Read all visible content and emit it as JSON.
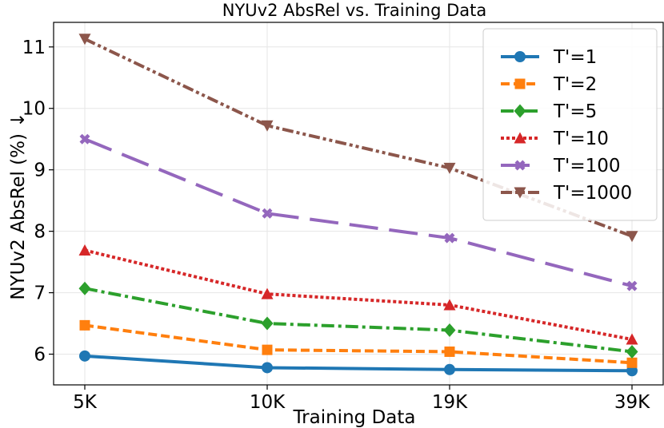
{
  "chart_data": {
    "type": "line",
    "title": "NYUv2 AbsRel vs. Training Data",
    "xlabel": "Training Data",
    "ylabel": "NYUv2 AbsRel (%) ↓",
    "categories": [
      "5K",
      "10K",
      "19K",
      "39K"
    ],
    "ylim": [
      5.5,
      11.4
    ],
    "yticks": [
      6,
      7,
      8,
      9,
      10,
      11
    ],
    "grid": true,
    "legend_position": "top-right",
    "series": [
      {
        "name": "T'=1",
        "values": [
          5.97,
          5.78,
          5.75,
          5.73
        ],
        "color": "#1f77b4",
        "marker": "circle",
        "dash": "solid"
      },
      {
        "name": "T'=2",
        "values": [
          6.47,
          6.07,
          6.04,
          5.86
        ],
        "color": "#ff7f0e",
        "marker": "square",
        "dash": "dashed"
      },
      {
        "name": "T'=5",
        "values": [
          7.07,
          6.5,
          6.39,
          6.04
        ],
        "color": "#2ca02c",
        "marker": "diamond",
        "dash": "dashdot"
      },
      {
        "name": "T'=10",
        "values": [
          7.69,
          6.98,
          6.8,
          6.24
        ],
        "color": "#d62728",
        "marker": "triangle-up",
        "dash": "dotted"
      },
      {
        "name": "T'=100",
        "values": [
          9.5,
          8.29,
          7.89,
          7.11
        ],
        "color": "#9467bd",
        "marker": "x",
        "dash": "longdash"
      },
      {
        "name": "T'=1000",
        "values": [
          11.13,
          9.72,
          9.03,
          7.92
        ],
        "color": "#8c564b",
        "marker": "triangle-down",
        "dash": "dashdotdot"
      }
    ]
  }
}
